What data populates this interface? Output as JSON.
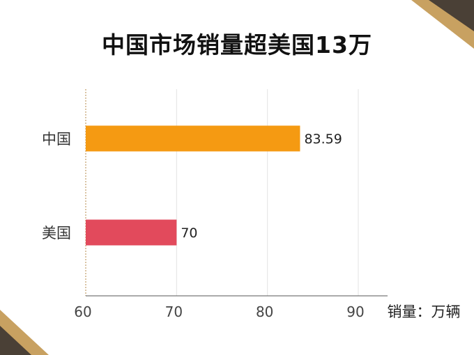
{
  "colors": {
    "china_bar": "#f59a12",
    "usa_bar": "#e24a5c",
    "corner_gold": "#c8a161",
    "corner_dark": "#4a4036"
  },
  "chart_data": {
    "type": "bar",
    "orientation": "horizontal",
    "title": "中国市场销量超美国13万",
    "categories": [
      "中国",
      "美国"
    ],
    "values": [
      83.59,
      70
    ],
    "value_labels": [
      "83.59",
      "70"
    ],
    "bar_colors": [
      "#f59a12",
      "#e24a5c"
    ],
    "xlim": [
      60,
      93
    ],
    "xticks": [
      "60",
      "70",
      "80",
      "90"
    ],
    "xlabel": "销量：万辆",
    "grid": true
  }
}
